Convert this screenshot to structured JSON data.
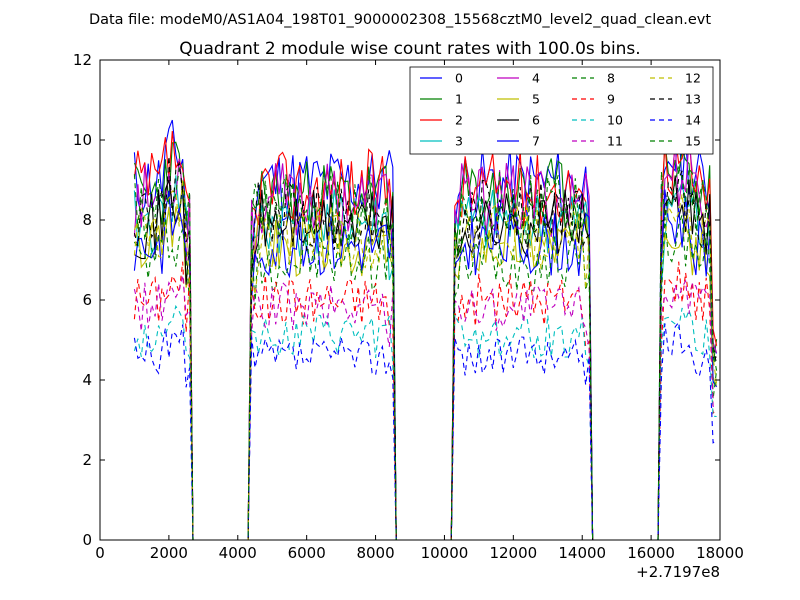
{
  "chart_data": {
    "type": "line",
    "supertitle": "Data file: modeM0/AS1A04_198T01_9000002308_15568cztM0_level2_quad_clean.evt",
    "title": "Quadrant 2 module wise count rates with 100.0s bins.",
    "xlabel": "",
    "ylabel": "",
    "xlim": [
      0,
      18000
    ],
    "ylim": [
      0,
      12
    ],
    "x_offset_label": "+2.7197e8",
    "x_ticks": [
      0,
      2000,
      4000,
      6000,
      8000,
      10000,
      12000,
      14000,
      16000,
      18000
    ],
    "y_ticks": [
      0,
      2,
      4,
      6,
      8,
      10,
      12
    ],
    "bin_seconds": 100,
    "x_start": 1000,
    "x_end": 17900,
    "gap_ranges": [
      [
        2600,
        4400
      ],
      [
        8500,
        10300
      ],
      [
        14200,
        16300
      ]
    ],
    "legend": {
      "position": "top-right",
      "columns": 4
    },
    "series": [
      {
        "name": "0",
        "color": "#0000ff",
        "dashed": false,
        "level": 8.9,
        "seed": 11
      },
      {
        "name": "1",
        "color": "#008000",
        "dashed": false,
        "level": 8.6,
        "seed": 23
      },
      {
        "name": "2",
        "color": "#ff0000",
        "dashed": false,
        "level": 8.8,
        "seed": 37
      },
      {
        "name": "3",
        "color": "#00bfbf",
        "dashed": false,
        "level": 7.9,
        "seed": 41
      },
      {
        "name": "4",
        "color": "#bf00bf",
        "dashed": false,
        "level": 8.5,
        "seed": 53
      },
      {
        "name": "5",
        "color": "#bfbf00",
        "dashed": false,
        "level": 7.4,
        "seed": 67
      },
      {
        "name": "6",
        "color": "#000000",
        "dashed": false,
        "level": 7.9,
        "seed": 71
      },
      {
        "name": "7",
        "color": "#0000ff",
        "dashed": false,
        "level": 7.4,
        "seed": 83
      },
      {
        "name": "8",
        "color": "#008000",
        "dashed": true,
        "level": 7.0,
        "seed": 97
      },
      {
        "name": "9",
        "color": "#ff0000",
        "dashed": true,
        "level": 6.0,
        "seed": 101
      },
      {
        "name": "10",
        "color": "#00bfbf",
        "dashed": true,
        "level": 5.1,
        "seed": 113
      },
      {
        "name": "11",
        "color": "#bf00bf",
        "dashed": true,
        "level": 5.8,
        "seed": 127
      },
      {
        "name": "12",
        "color": "#bfbf00",
        "dashed": true,
        "level": 7.6,
        "seed": 131
      },
      {
        "name": "13",
        "color": "#000000",
        "dashed": true,
        "level": 8.1,
        "seed": 149
      },
      {
        "name": "14",
        "color": "#0000ff",
        "dashed": true,
        "level": 4.6,
        "seed": 157
      },
      {
        "name": "15",
        "color": "#008000",
        "dashed": true,
        "level": 8.3,
        "seed": 163
      }
    ]
  }
}
